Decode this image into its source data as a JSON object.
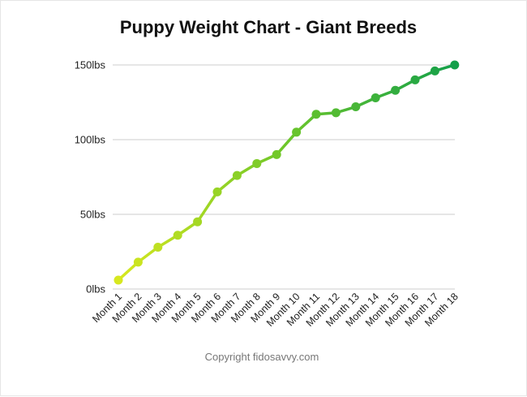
{
  "chart_data": {
    "type": "line",
    "title": "Puppy Weight Chart - Giant Breeds",
    "xlabel": "",
    "ylabel": "",
    "categories": [
      "Month 1",
      "Month 2",
      "Month 3",
      "Month 4",
      "Month 5",
      "Month 6",
      "Month 7",
      "Month 8",
      "Month 9",
      "Month 10",
      "Month 11",
      "Month 12",
      "Month 13",
      "Month 14",
      "Month 15",
      "Month 16",
      "Month 17",
      "Month 18"
    ],
    "series": [
      {
        "values": [
          6,
          18,
          28,
          36,
          45,
          65,
          76,
          84,
          90,
          105,
          117,
          118,
          122,
          128,
          133,
          140,
          146,
          150
        ]
      }
    ],
    "ylim": [
      0,
      150
    ],
    "yticks": [
      0,
      50,
      100,
      150
    ],
    "ytick_labels": [
      "0lbs",
      "50lbs",
      "100lbs",
      "150lbs"
    ],
    "grid": true,
    "legend": "none",
    "colors": {
      "start": "#d7e81f",
      "end": "#14a04a",
      "grid": "#cccccc"
    }
  },
  "footer": {
    "credit": "Copyright fidosavvy.com"
  }
}
